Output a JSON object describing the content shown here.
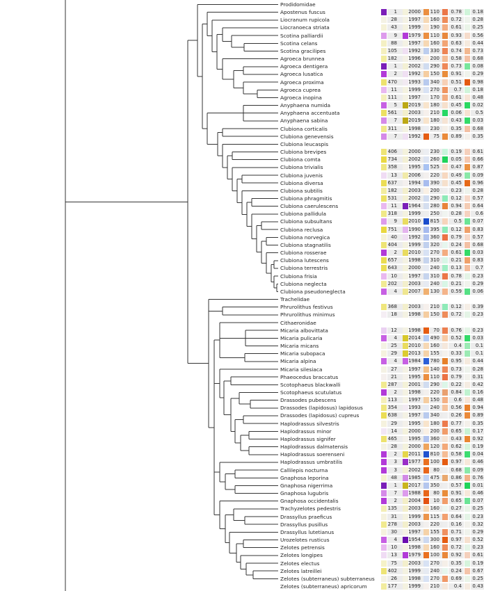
{
  "palette": {
    "col1": {
      "1": "#7b1fb8",
      "2": "#b23ad8",
      "3": "#b23ad8",
      "4": "#c760e3",
      "5": "#c760e3",
      "7": "#d58ae8",
      "9": "#dd9bec",
      "10": "#e9b8f0",
      "11": "#e9b8f0",
      "12": "#ead0f2",
      "13": "#f0dcf4",
      "14": "#f2e6f5",
      "18": "#f5eef4",
      "21": "#f5f0ee",
      "25": "#f4f2e4",
      "26": "#f4f2e4",
      "27": "#f4f2e4",
      "28": "#f4f2e4",
      "29": "#f5f2de",
      "30": "#f5f2de",
      "31": "#f5f2de",
      "40": "#f5f2d8",
      "43": "#f5f2d8",
      "48": "#f5f2d0",
      "75": "#f5f2c8",
      "88": "#f4f0c4",
      "105": "#f4efbe",
      "111": "#f4efbc",
      "113": "#f4efba",
      "135": "#f3eeb6",
      "177": "#f2ec9e",
      "182": "#f2ec9e",
      "202": "#f1ea94",
      "278": "#f1ea90",
      "287": "#f1ea90",
      "311": "#f0e88a",
      "318": "#f0e888",
      "354": "#efe680",
      "358": "#efe680",
      "368": "#efe67e",
      "402": "#eee476",
      "404": "#eee476",
      "406": "#eee476",
      "465": "#ede26e",
      "470": "#ede26e",
      "531": "#ece064",
      "561": "#ece062",
      "637": "#ebdd56",
      "638": "#ebdd56",
      "643": "#ebdd56",
      "657": "#eadc52",
      "734": "#e9d844",
      "751": "#e9d840"
    },
    "col2": {
      "1954": "#6a0db0",
      "1964": "#7b1fb8",
      "1977": "#9a2ec8",
      "1979": "#b23ad8",
      "1984": "#c760e3",
      "1985": "#d28ae6",
      "1988": "#dd9bec",
      "1990": "#e4b4ee",
      "1992": "#f0e0f3",
      "1993": "#f2eaf2",
      "1994": "#f4f0ee",
      "1995": "#f4f1ea",
      "1996": "#f4f1e6",
      "1997": "#f4f2e4",
      "1998": "#f4f2e2",
      "1999": "#f4f2e0",
      "2000": "#f4f2dc",
      "2001": "#f4f2d8",
      "2002": "#f3f0d4",
      "2003": "#f3efcc",
      "2004": "#f3eec6",
      "2006": "#f1eaa8",
      "2007": "#efe690",
      "2010": "#e9dc60",
      "2011": "#e5d64a",
      "2013": "#dccc30",
      "2014": "#d8c82a",
      "2017": "#c9b51c",
      "2019": "#bca815"
    },
    "col3": {
      "10": "#e35010",
      "70": "#e55c12",
      "75": "#e55c12",
      "80": "#e8661a",
      "100": "#ea7020",
      "110": "#eb8e40",
      "115": "#ec944a",
      "120": "#eea45c",
      "130": "#f0b070",
      "140": "#f3c088",
      "150": "#f5cda0",
      "155": "#f5d2a8",
      "160": "#f6d8b4",
      "180": "#f8e4cc",
      "190": "#f9e8d4",
      "200": "#faf0e4",
      "210": "#f6f0ec",
      "220": "#f3f0ee",
      "230": "#eceef2",
      "240": "#e6eaf2",
      "260": "#dde4f2",
      "270": "#d8e2f4",
      "280": "#d4deef",
      "290": "#d0dcf0",
      "300": "#ccd8f0",
      "310": "#c6d4ee",
      "320": "#c0d0ee",
      "330": "#bccdee",
      "340": "#b8caee",
      "350": "#b4c6ee",
      "360": "#b0c2ee",
      "390": "#a8bcee",
      "395": "#a6baee",
      "475": "#c0d2f4",
      "490": "#b4cbf4",
      "525": "#a8c2f2",
      "780": "#2b5fd8",
      "810": "#1f52d0",
      "815": "#1a4ccc"
    },
    "col4": {
      "0.05": "#1fd35a",
      "0.06": "#28d865",
      "0.12": "#8eeab8",
      "0.13": "#a0eec4",
      "0.19": "#c8f5dc",
      "0.21": "#d8f6e6",
      "0.22": "#dcf6e8",
      "0.24": "#e6f6ee",
      "0.27": "#eef6f0",
      "0.28": "#f0f4f0",
      "0.33": "#f4f1ec",
      "0.35": "#f5efe8",
      "0.4": "#f5e8dc",
      "0.43": "#f6e4d4",
      "0.45": "#f6e0cc",
      "0.47": "#f7dcc6",
      "0.49": "#f7d8c0",
      "0.5": "#f7d4bc",
      "0.51": "#f7d0b6",
      "0.52": "#f7cca8",
      "0.56": "#f5c29c",
      "0.58": "#f5bc94",
      "0.59": "#f4b48a",
      "0.6": "#f4b084",
      "0.61": "#f3ac80",
      "0.62": "#f3a878",
      "0.63": "#f2a474",
      "0.64": "#f2a070",
      "0.65": "#f19c6a",
      "0.69": "#f09868",
      "0.7": "#ef9460",
      "0.71": "#ef9060",
      "0.72": "#ee8c5a",
      "0.73": "#ee8858",
      "0.74": "#ed8454",
      "0.76": "#ec7f50",
      "0.77": "#ec7a4c",
      "0.78": "#eb7648",
      "0.79": "#eb7244",
      "0.84": "#e9a070",
      "0.86": "#e9a86e",
      "0.89": "#ea8a3a",
      "0.91": "#e98c3a",
      "0.92": "#e9883a",
      "0.93": "#e8883c",
      "0.94": "#e8843a",
      "0.95": "#e6802a",
      "0.97": "#e55c12"
    },
    "col5": {
      "0.01": "#1fd35a",
      "0.02": "#2ad862",
      "0.03": "#33da68",
      "0.04": "#3ddc70",
      "0.06": "#55e084",
      "0.07": "#6be495",
      "0.08": "#78e69c",
      "0.09": "#8ae8a8",
      "0.1": "#9ceab4",
      "0.16": "#c0f2d0",
      "0.17": "#c8f2d4",
      "0.18": "#d0f4da",
      "0.19": "#d6f4dc",
      "0.23": "#e4f4e6",
      "0.25": "#eaf4e8",
      "0.28": "#eef3ec",
      "0.29": "#f0f3ec",
      "0.31": "#f2f2ec",
      "0.32": "#f3f2ec",
      "0.35": "#f4f0ea",
      "0.39": "#f5eee6",
      "0.42": "#f5ece2",
      "0.43": "#f5ebe0",
      "0.44": "#f5eade",
      "0.46": "#f6e8da",
      "0.48": "#f6e4d6",
      "0.5": "#f6e2d2",
      "0.52": "#f6e0ce",
      "0.56": "#f6dccb",
      "0.57": "#f6d8c8",
      "0.6": "#f6d2c0",
      "0.61": "#f5d0bc",
      "0.64": "#f4ccb4",
      "0.66": "#f4c8b0",
      "0.67": "#f4c4aa",
      "0.68": "#f3c0a4",
      "0.7": "#f3bc9c",
      "0.73": "#f2b890",
      "0.76": "#f2b088",
      "0.83": "#efa06a",
      "0.87": "#eb9242",
      "0.89": "#ea8a3a",
      "0.92": "#e98632",
      "0.94": "#e8802a",
      "0.96": "#e56a18",
      "0.98": "#e35a10"
    }
  },
  "rows": [
    {
      "name": "Prodidomidae"
    },
    {
      "name": "Apostenus fuscus",
      "v1": "1",
      "v2": "2000",
      "v3": "110",
      "v4": "0.78",
      "v5": "0.18"
    },
    {
      "name": "Liocranum rupicola",
      "v1": "28",
      "v2": "1997",
      "v3": "160",
      "v4": "0.72",
      "v5": "0.28"
    },
    {
      "name": "Liocranoeca striata",
      "v1": "43",
      "v2": "1999",
      "v3": "190",
      "v4": "0.61",
      "v5": "0.25"
    },
    {
      "name": "Scotina palliardii",
      "v1": "9",
      "v2": "1979",
      "v3": "110",
      "v4": "0.93",
      "v5": "0.56"
    },
    {
      "name": "Scotina celans",
      "v1": "88",
      "v2": "1997",
      "v3": "160",
      "v4": "0.63",
      "v5": "0.44"
    },
    {
      "name": "Scotina gracilipes",
      "v1": "105",
      "v2": "1992",
      "v3": "330",
      "v4": "0.74",
      "v5": "0.73"
    },
    {
      "name": "Agroeca brunnea",
      "v1": "182",
      "v2": "1996",
      "v3": "200",
      "v4": "0.58",
      "v5": "0.68"
    },
    {
      "name": "Agroeca dentigera",
      "v1": "1",
      "v2": "2002",
      "v3": "290",
      "v4": "0.73",
      "v5": "0.08"
    },
    {
      "name": "Agroeca lusatica",
      "v1": "2",
      "v2": "1992",
      "v3": "150",
      "v4": "0.91",
      "v5": "0.29"
    },
    {
      "name": "Agroeca proxima",
      "v1": "470",
      "v2": "1993",
      "v3": "340",
      "v4": "0.51",
      "v5": "0.98"
    },
    {
      "name": "Agroeca cuprea",
      "v1": "11",
      "v2": "1999",
      "v3": "270",
      "v4": "0.7",
      "v5": "0.18"
    },
    {
      "name": "Agroeca inopina",
      "v1": "111",
      "v2": "1997",
      "v3": "170",
      "v4": "0.61",
      "v5": "0.48"
    },
    {
      "name": "Anyphaena numida",
      "v1": "5",
      "v2": "2019",
      "v3": "180",
      "v4": "0.45",
      "v5": "0.02"
    },
    {
      "name": "Anyphaena accentuata",
      "v1": "561",
      "v2": "2003",
      "v3": "210",
      "v4": "0.06",
      "v5": "0.5"
    },
    {
      "name": "Anyphaena sabina",
      "v1": "7",
      "v2": "2019",
      "v3": "180",
      "v4": "0.43",
      "v5": "0.03"
    },
    {
      "name": "Clubiona corticalis",
      "v1": "311",
      "v2": "1998",
      "v3": "230",
      "v4": "0.35",
      "v5": "0.68"
    },
    {
      "name": "Clubiona genevensis",
      "v1": "7",
      "v2": "1992",
      "v3": "75",
      "v4": "0.89",
      "v5": "0.35"
    },
    {
      "name": "Clubiona leucaspis"
    },
    {
      "name": "Clubiona brevipes",
      "v1": "406",
      "v2": "2000",
      "v3": "230",
      "v4": "0.19",
      "v5": "0.61"
    },
    {
      "name": "Clubiona comta",
      "v1": "734",
      "v2": "2002",
      "v3": "260",
      "v4": "0.05",
      "v5": "0.66"
    },
    {
      "name": "Clubiona trivialis",
      "v1": "358",
      "v2": "1995",
      "v3": "525",
      "v4": "0.47",
      "v5": "0.87"
    },
    {
      "name": "Clubiona juvenis",
      "v1": "13",
      "v2": "2006",
      "v3": "220",
      "v4": "0.49",
      "v5": "0.09"
    },
    {
      "name": "Clubiona diversa",
      "v1": "637",
      "v2": "1994",
      "v3": "390",
      "v4": "0.45",
      "v5": "0.96"
    },
    {
      "name": "Clubiona subtilis",
      "v1": "182",
      "v2": "2003",
      "v3": "200",
      "v4": "0.23",
      "v5": "0.28"
    },
    {
      "name": "Clubiona phragmitis",
      "v1": "531",
      "v2": "2002",
      "v3": "290",
      "v4": "0.12",
      "v5": "0.57"
    },
    {
      "name": "Clubiona caerulescens",
      "v1": "11",
      "v2": "1964",
      "v3": "280",
      "v4": "0.94",
      "v5": "0.64"
    },
    {
      "name": "Clubiona pallidula",
      "v1": "318",
      "v2": "1999",
      "v3": "250",
      "v4": "0.28",
      "v5": "0.6"
    },
    {
      "name": "Clubiona subsultans",
      "v1": "9",
      "v2": "2010",
      "v3": "815",
      "v4": "0.5",
      "v5": "0.07"
    },
    {
      "name": "Clubiona reclusa",
      "v1": "751",
      "v2": "1990",
      "v3": "395",
      "v4": "0.12",
      "v5": "0.83"
    },
    {
      "name": "Clubiona norvegica",
      "v1": "40",
      "v2": "1992",
      "v3": "360",
      "v4": "0.79",
      "v5": "0.57"
    },
    {
      "name": "Clubiona stagnatilis",
      "v1": "404",
      "v2": "1999",
      "v3": "320",
      "v4": "0.24",
      "v5": "0.68"
    },
    {
      "name": "Clubiona rosserae",
      "v1": "2",
      "v2": "2010",
      "v3": "270",
      "v4": "0.61",
      "v5": "0.03"
    },
    {
      "name": "Clubiona lutescens",
      "v1": "657",
      "v2": "1998",
      "v3": "310",
      "v4": "0.21",
      "v5": "0.83"
    },
    {
      "name": "Clubiona terrestris",
      "v1": "643",
      "v2": "2000",
      "v3": "240",
      "v4": "0.13",
      "v5": "0.7"
    },
    {
      "name": "Clubiona frisia",
      "v1": "10",
      "v2": "1997",
      "v3": "310",
      "v4": "0.78",
      "v5": "0.23"
    },
    {
      "name": "Clubiona neglecta",
      "v1": "202",
      "v2": "2003",
      "v3": "240",
      "v4": "0.21",
      "v5": "0.29"
    },
    {
      "name": "Clubiona pseudoneglecta",
      "v1": "4",
      "v2": "2007",
      "v3": "130",
      "v4": "0.59",
      "v5": "0.06"
    },
    {
      "name": "Trachelidae"
    },
    {
      "name": "Phrurolithus festivus",
      "v1": "368",
      "v2": "2003",
      "v3": "210",
      "v4": "0.12",
      "v5": "0.39"
    },
    {
      "name": "Phrurolithus minimus",
      "v1": "18",
      "v2": "1998",
      "v3": "150",
      "v4": "0.72",
      "v5": "0.23"
    },
    {
      "name": "Cithaeronidae"
    },
    {
      "name": "Micaria albovittata",
      "v1": "12",
      "v2": "1998",
      "v3": "70",
      "v4": "0.76",
      "v5": "0.23"
    },
    {
      "name": "Micaria pulicaria",
      "v1": "4",
      "v2": "2014",
      "v3": "490",
      "v4": "0.52",
      "v5": "0.03"
    },
    {
      "name": "Micaria micans",
      "v1": "25",
      "v2": "2010",
      "v3": "160",
      "v4": "0.4",
      "v5": "0.1"
    },
    {
      "name": "Micaria subopaca",
      "v1": "29",
      "v2": "2013",
      "v3": "155",
      "v4": "0.33",
      "v5": "0.1"
    },
    {
      "name": "Micaria alpina",
      "v1": "4",
      "v2": "1984",
      "v3": "780",
      "v4": "0.95",
      "v5": "0.44"
    },
    {
      "name": "Micaria silesiaca",
      "v1": "27",
      "v2": "1997",
      "v3": "140",
      "v4": "0.73",
      "v5": "0.28"
    },
    {
      "name": "Phaeocedus braccatus",
      "v1": "21",
      "v2": "1995",
      "v3": "110",
      "v4": "0.79",
      "v5": "0.31"
    },
    {
      "name": "Scotophaeus blackwalli",
      "v1": "287",
      "v2": "2001",
      "v3": "290",
      "v4": "0.22",
      "v5": "0.42"
    },
    {
      "name": "Scotophaeus scutulatus",
      "v1": "2",
      "v2": "1998",
      "v3": "220",
      "v4": "0.84",
      "v5": "0.16"
    },
    {
      "name": "Drassodes pubescens",
      "v1": "113",
      "v2": "1997",
      "v3": "150",
      "v4": "0.6",
      "v5": "0.48"
    },
    {
      "name": "Drassodes (lapidosus) lapidosus",
      "v1": "354",
      "v2": "1993",
      "v3": "240",
      "v4": "0.56",
      "v5": "0.94"
    },
    {
      "name": "Drassodes (lapidosus) cupreus",
      "v1": "638",
      "v2": "1997",
      "v3": "340",
      "v4": "0.26",
      "v5": "0.89"
    },
    {
      "name": "Haplodrassus silvestris",
      "v1": "29",
      "v2": "1995",
      "v3": "180",
      "v4": "0.77",
      "v5": "0.35"
    },
    {
      "name": "Haplodrassus minor",
      "v1": "14",
      "v2": "2000",
      "v3": "200",
      "v4": "0.65",
      "v5": "0.17"
    },
    {
      "name": "Haplodrassus signifer",
      "v1": "465",
      "v2": "1995",
      "v3": "360",
      "v4": "0.43",
      "v5": "0.92"
    },
    {
      "name": "Haplodrassus dalmatensis",
      "v1": "28",
      "v2": "2000",
      "v3": "120",
      "v4": "0.62",
      "v5": "0.19"
    },
    {
      "name": "Haplodrassus soerenseni",
      "v1": "2",
      "v2": "2011",
      "v3": "810",
      "v4": "0.58",
      "v5": "0.04"
    },
    {
      "name": "Haplodrassus umbratilis",
      "v1": "3",
      "v2": "1977",
      "v3": "100",
      "v4": "0.97",
      "v5": "0.46"
    },
    {
      "name": "Callilepis nocturna",
      "v1": "3",
      "v2": "2002",
      "v3": "80",
      "v4": "0.68",
      "v5": "0.09"
    },
    {
      "name": "Gnaphosa leporina",
      "v1": "48",
      "v2": "1985",
      "v3": "475",
      "v4": "0.86",
      "v5": "0.76"
    },
    {
      "name": "Gnaphosa nigerrima",
      "v1": "1",
      "v2": "2017",
      "v3": "350",
      "v4": "0.57",
      "v5": "0.01"
    },
    {
      "name": "Gnaphosa lugubris",
      "v1": "7",
      "v2": "1988",
      "v3": "80",
      "v4": "0.91",
      "v5": "0.46"
    },
    {
      "name": "Gnaphosa occidentalis",
      "v1": "2",
      "v2": "2004",
      "v3": "10",
      "v4": "0.65",
      "v5": "0.07"
    },
    {
      "name": "Trachyzelotes pedestris",
      "v1": "135",
      "v2": "2003",
      "v3": "160",
      "v4": "0.27",
      "v5": "0.25"
    },
    {
      "name": "Drassyllus praeficus",
      "v1": "31",
      "v2": "1999",
      "v3": "115",
      "v4": "0.64",
      "v5": "0.23"
    },
    {
      "name": "Drassyllus pusillus",
      "v1": "278",
      "v2": "2003",
      "v3": "220",
      "v4": "0.16",
      "v5": "0.32"
    },
    {
      "name": "Drassyllus lutetianus",
      "v1": "30",
      "v2": "1997",
      "v3": "155",
      "v4": "0.71",
      "v5": "0.29"
    },
    {
      "name": "Urozelotes rusticus",
      "v1": "4",
      "v2": "1954",
      "v3": "300",
      "v4": "0.97",
      "v5": "0.52"
    },
    {
      "name": "Zelotes petrensis",
      "v1": "10",
      "v2": "1998",
      "v3": "160",
      "v4": "0.72",
      "v5": "0.23"
    },
    {
      "name": "Zelotes longipes",
      "v1": "13",
      "v2": "1979",
      "v3": "100",
      "v4": "0.92",
      "v5": "0.61"
    },
    {
      "name": "Zelotes electus",
      "v1": "75",
      "v2": "2003",
      "v3": "270",
      "v4": "0.35",
      "v5": "0.19"
    },
    {
      "name": "Zelotes latreillei",
      "v1": "402",
      "v2": "1999",
      "v3": "240",
      "v4": "0.24",
      "v5": "0.67"
    },
    {
      "name": "Zelotes (subterraneus) subterraneus",
      "v1": "26",
      "v2": "1998",
      "v3": "270",
      "v4": "0.69",
      "v5": "0.25"
    },
    {
      "name": "Zelotes (subterraneus) apricorum",
      "v1": "177",
      "v2": "1999",
      "v3": "210",
      "v4": "0.4",
      "v5": "0.43"
    }
  ]
}
